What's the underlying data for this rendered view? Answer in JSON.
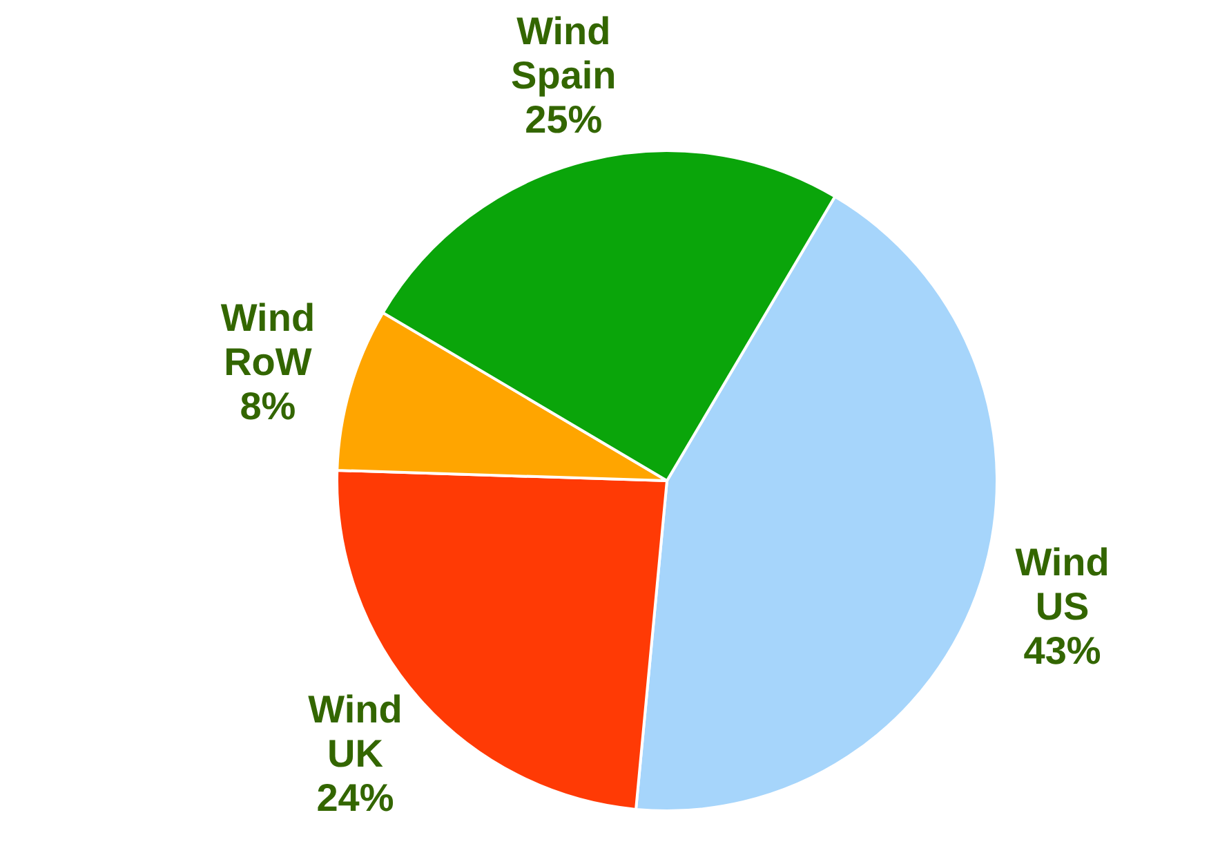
{
  "chart_data": {
    "type": "pie",
    "categories": [
      "Wind US",
      "Wind UK",
      "Wind RoW",
      "Wind Spain"
    ],
    "values": [
      43,
      24,
      8,
      25
    ],
    "colors": [
      "#a6d5fb",
      "#ff3a05",
      "#ffa500",
      "#0aa50a"
    ],
    "value_labels": [
      "43%",
      "24%",
      "8%",
      "25%"
    ]
  }
}
